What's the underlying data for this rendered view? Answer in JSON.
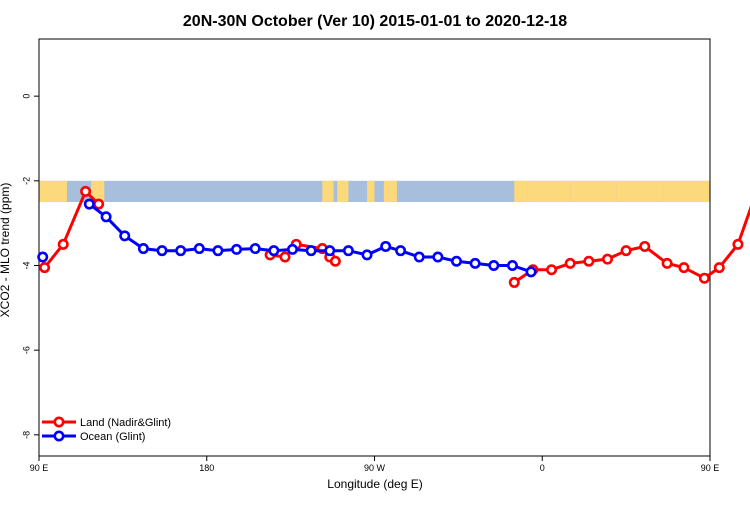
{
  "chart_data": {
    "type": "line",
    "title": "20N-30N October (Ver 10)   2015-01-01 to 2020-12-18",
    "xlabel": "Longitude (deg E)",
    "ylabel": "XCO2 - MLO trend (ppm)",
    "xlim": [
      90,
      450
    ],
    "ylim": [
      -8.5,
      1.35
    ],
    "x_ticks": [
      {
        "value": 90,
        "label": "90 E"
      },
      {
        "value": 180,
        "label": "180"
      },
      {
        "value": 270,
        "label": "90 W"
      },
      {
        "value": 360,
        "label": "0"
      },
      {
        "value": 450,
        "label": "90 E"
      },
      {
        "value": 540,
        "label": "180"
      }
    ],
    "y_ticks": [
      {
        "value": 0,
        "label": "0"
      },
      {
        "value": -2,
        "label": "-2"
      },
      {
        "value": -4,
        "label": "-4"
      },
      {
        "value": -6,
        "label": "-6"
      },
      {
        "value": -8,
        "label": "-8"
      }
    ],
    "map_band": {
      "y_top": -2.0,
      "y_bottom": -2.5,
      "ocean_color": "#a8bedd",
      "land_color": "#fcd97a"
    },
    "legend": {
      "position": "bottom-left"
    },
    "series": [
      {
        "name": "Land (Nadir&Glint)",
        "color": "#ff0000",
        "points": [
          [
            95,
            -4.05
          ],
          [
            105,
            -3.5
          ],
          [
            115,
            -2.25
          ],
          [
            122,
            -2.55
          ],
          [
            105,
            -3.5
          ],
          [
            216,
            -3.75
          ],
          [
            222,
            -3.8
          ],
          [
            229,
            -3.5
          ],
          [
            240,
            -3.7
          ],
          [
            246,
            -3.8
          ],
          [
            249,
            -3.9
          ],
          [
            348,
            -4.4
          ],
          [
            355,
            -4.1
          ],
          [
            365,
            -4.1
          ],
          [
            375,
            -3.95
          ],
          [
            386,
            -3.9
          ],
          [
            395,
            -3.85
          ],
          [
            413,
            -3.65
          ],
          [
            427,
            -3.95
          ],
          [
            437,
            -4.05
          ],
          [
            448,
            -4.3
          ],
          [
            458,
            -4.05
          ],
          [
            469,
            -3.5
          ],
          [
            481,
            -2.25
          ],
          [
            489,
            -2.55
          ]
        ],
        "segments": [
          [
            [
              93,
              -4.05
            ],
            [
              103,
              -3.5
            ],
            [
              115,
              -2.25
            ],
            [
              122,
              -2.55
            ]
          ],
          [
            [
              214,
              -3.75
            ],
            [
              222,
              -3.8
            ],
            [
              228,
              -3.5
            ],
            [
              242,
              -3.6
            ],
            [
              246,
              -3.8
            ],
            [
              249,
              -3.9
            ]
          ],
          [
            [
              345,
              -4.4
            ],
            [
              355,
              -4.1
            ],
            [
              365,
              -4.1
            ],
            [
              375,
              -3.95
            ],
            [
              385,
              -3.9
            ],
            [
              395,
              -3.85
            ],
            [
              405,
              -3.65
            ],
            [
              415,
              -3.55
            ],
            [
              427,
              -3.95
            ],
            [
              436,
              -4.05
            ],
            [
              447,
              -4.3
            ],
            [
              455,
              -4.05
            ],
            [
              465,
              -3.5
            ],
            [
              475,
              -2.25
            ],
            [
              482,
              -2.55
            ]
          ]
        ]
      },
      {
        "name": "Ocean (Glint)",
        "color": "#0000ff",
        "segments": [
          [
            [
              92,
              -3.8
            ]
          ],
          [
            [
              117,
              -2.55
            ],
            [
              126,
              -2.85
            ],
            [
              136,
              -3.3
            ],
            [
              146,
              -3.6
            ],
            [
              156,
              -3.65
            ],
            [
              166,
              -3.65
            ],
            [
              176,
              -3.6
            ],
            [
              186,
              -3.65
            ],
            [
              196,
              -3.62
            ],
            [
              206,
              -3.6
            ],
            [
              216,
              -3.65
            ],
            [
              226,
              -3.62
            ],
            [
              236,
              -3.65
            ],
            [
              246,
              -3.65
            ],
            [
              256,
              -3.65
            ],
            [
              266,
              -3.75
            ],
            [
              276,
              -3.55
            ],
            [
              284,
              -3.65
            ],
            [
              294,
              -3.8
            ],
            [
              304,
              -3.8
            ],
            [
              314,
              -3.9
            ],
            [
              324,
              -3.95
            ],
            [
              334,
              -4.0
            ],
            [
              344,
              -4.0
            ],
            [
              354,
              -4.15
            ]
          ]
        ],
        "segments2": []
      }
    ]
  }
}
